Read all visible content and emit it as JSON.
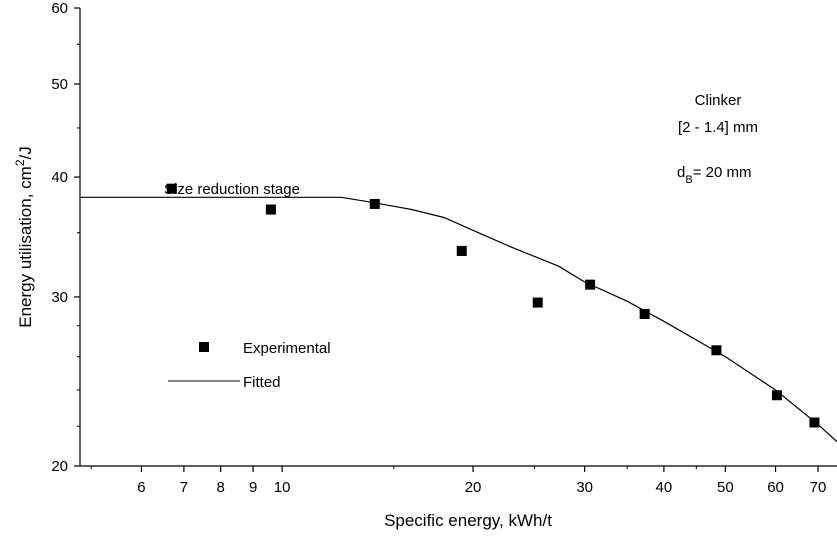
{
  "chart_data": {
    "type": "scatter",
    "x_scale": "log",
    "y_scale": "log",
    "xlabel": "Specific energy, kWh/t",
    "ylabel_main": "Energy utilisation, cm",
    "ylabel_sup": "2",
    "ylabel_tail": "/J",
    "xlim": [
      4.8,
      75
    ],
    "ylim": [
      20,
      60
    ],
    "x_ticks": [
      6,
      7,
      8,
      9,
      10,
      20,
      30,
      40,
      50,
      60,
      70
    ],
    "y_ticks": [
      20,
      30,
      40,
      50,
      60
    ],
    "grid": false,
    "series": [
      {
        "name": "Experimental",
        "kind": "markers",
        "color": "#000000",
        "points": [
          {
            "x": 6.7,
            "y": 38.9
          },
          {
            "x": 9.6,
            "y": 37.0
          },
          {
            "x": 14.0,
            "y": 37.5
          },
          {
            "x": 19.2,
            "y": 33.5
          },
          {
            "x": 25.3,
            "y": 29.6
          },
          {
            "x": 30.6,
            "y": 30.9
          },
          {
            "x": 37.3,
            "y": 28.8
          },
          {
            "x": 48.4,
            "y": 26.4
          },
          {
            "x": 60.3,
            "y": 23.7
          },
          {
            "x": 69.1,
            "y": 22.2
          }
        ]
      },
      {
        "name": "Fitted",
        "kind": "line",
        "color": "#000000",
        "points": [
          {
            "x": 4.8,
            "y": 38.1
          },
          {
            "x": 12.4,
            "y": 38.1
          },
          {
            "x": 14.0,
            "y": 37.6
          },
          {
            "x": 16.0,
            "y": 37.0
          },
          {
            "x": 18.0,
            "y": 36.3
          },
          {
            "x": 20.0,
            "y": 35.2
          },
          {
            "x": 23.0,
            "y": 33.8
          },
          {
            "x": 27.3,
            "y": 32.3
          },
          {
            "x": 30.0,
            "y": 31.1
          },
          {
            "x": 35.0,
            "y": 29.7
          },
          {
            "x": 40.0,
            "y": 28.3
          },
          {
            "x": 50.0,
            "y": 26.0
          },
          {
            "x": 60.0,
            "y": 24.0
          },
          {
            "x": 70.0,
            "y": 22.1
          },
          {
            "x": 75.0,
            "y": 21.2
          }
        ]
      }
    ],
    "legend": {
      "placement": "left-lower",
      "marker_label": "Experimental",
      "line_label": "Fitted"
    },
    "annotations": {
      "stage_label": "Size reduction stage",
      "material": "Clinker",
      "size_range": "[2 - 1.4] mm",
      "db_main": "d",
      "db_sub": "B",
      "db_value": "= 20 mm"
    }
  }
}
